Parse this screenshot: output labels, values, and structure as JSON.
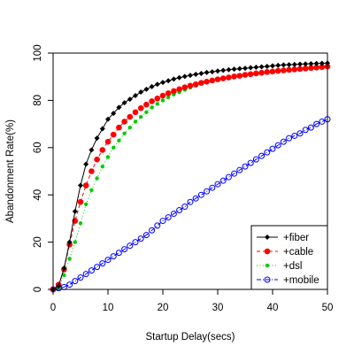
{
  "chart_data": {
    "type": "line",
    "title": "",
    "xlabel": "Startup Delay(secs)",
    "ylabel": "Abandonment Rate(%)",
    "xlim": [
      0,
      50
    ],
    "ylim": [
      0,
      100
    ],
    "xticks": [
      "0",
      "10",
      "20",
      "30",
      "40",
      "50"
    ],
    "yticks": [
      "0",
      "20",
      "40",
      "60",
      "80",
      "100"
    ],
    "grid": false,
    "legend_position": "bottom-right",
    "x": [
      0,
      1,
      2,
      3,
      4,
      5,
      6,
      7,
      8,
      9,
      10,
      11,
      12,
      13,
      14,
      15,
      16,
      17,
      18,
      19,
      20,
      21,
      22,
      23,
      24,
      25,
      26,
      27,
      28,
      29,
      30,
      31,
      32,
      33,
      34,
      35,
      36,
      37,
      38,
      39,
      40,
      41,
      42,
      43,
      44,
      45,
      46,
      47,
      48,
      49,
      50
    ],
    "series": [
      {
        "name": "+fiber",
        "color": "#000000",
        "marker": "diamond",
        "dash": "solid",
        "values": [
          0,
          1.5,
          9,
          20,
          33,
          44,
          53,
          59,
          64,
          68,
          72,
          74.5,
          77,
          79,
          80.5,
          82,
          83.5,
          84.7,
          85.8,
          86.8,
          87.6,
          88.3,
          89,
          89.6,
          90.1,
          90.6,
          91,
          91.4,
          91.8,
          92.1,
          92.4,
          92.7,
          93,
          93.2,
          93.4,
          93.6,
          93.8,
          94,
          94.2,
          94.4,
          94.6,
          94.8,
          95,
          95.1,
          95.2,
          95.3,
          95.4,
          95.5,
          95.6,
          95.7,
          95.8
        ]
      },
      {
        "name": "+cable",
        "color": "#ff0000",
        "marker": "circle-filled",
        "dash": "dashed",
        "values": [
          0,
          2,
          8.5,
          19,
          29,
          37,
          44,
          50,
          55,
          59,
          62.5,
          65.5,
          68.5,
          71,
          73,
          75,
          76.7,
          78.2,
          79.6,
          80.8,
          82,
          83,
          83.9,
          84.7,
          85.5,
          86.2,
          86.8,
          87.4,
          87.9,
          88.4,
          88.9,
          89.3,
          89.7,
          90.1,
          90.4,
          90.8,
          91.1,
          91.4,
          91.7,
          92,
          92.2,
          92.5,
          92.7,
          92.9,
          93.1,
          93.3,
          93.5,
          93.7,
          93.9,
          94.1,
          94.3
        ]
      },
      {
        "name": "+dsl",
        "color": "#00cc00",
        "marker": "dot",
        "dash": "dotted",
        "values": [
          0,
          1,
          6,
          13,
          20,
          28,
          36,
          42,
          47,
          52,
          56,
          60,
          63,
          66,
          68.5,
          71,
          73,
          75,
          77,
          78.5,
          80,
          81.3,
          82.5,
          83.5,
          84.5,
          85.4,
          86.2,
          87,
          87.6,
          88.2,
          88.8,
          89.3,
          89.7,
          90.1,
          90.5,
          90.9,
          91.2,
          91.5,
          91.8,
          92.1,
          92.3,
          92.5,
          92.7,
          92.9,
          93.1,
          93.3,
          93.5,
          93.6,
          93.7,
          93.8,
          94
        ]
      },
      {
        "name": "+mobile",
        "color": "#0000ff",
        "marker": "circle-open",
        "dash": "dashdot",
        "values": [
          0,
          0.5,
          1,
          2,
          3.5,
          5,
          6.5,
          8,
          9.5,
          11,
          12.5,
          14,
          15.5,
          17,
          18.5,
          20,
          21.5,
          23,
          25,
          27,
          29,
          30.5,
          32,
          33.5,
          35,
          37,
          38.5,
          40,
          41.5,
          43,
          44.5,
          46,
          47.5,
          49,
          50.5,
          52,
          53.5,
          55,
          56.5,
          58,
          59.5,
          61,
          62.5,
          64,
          65,
          66,
          67.5,
          68.5,
          70,
          71,
          72
        ]
      }
    ]
  }
}
